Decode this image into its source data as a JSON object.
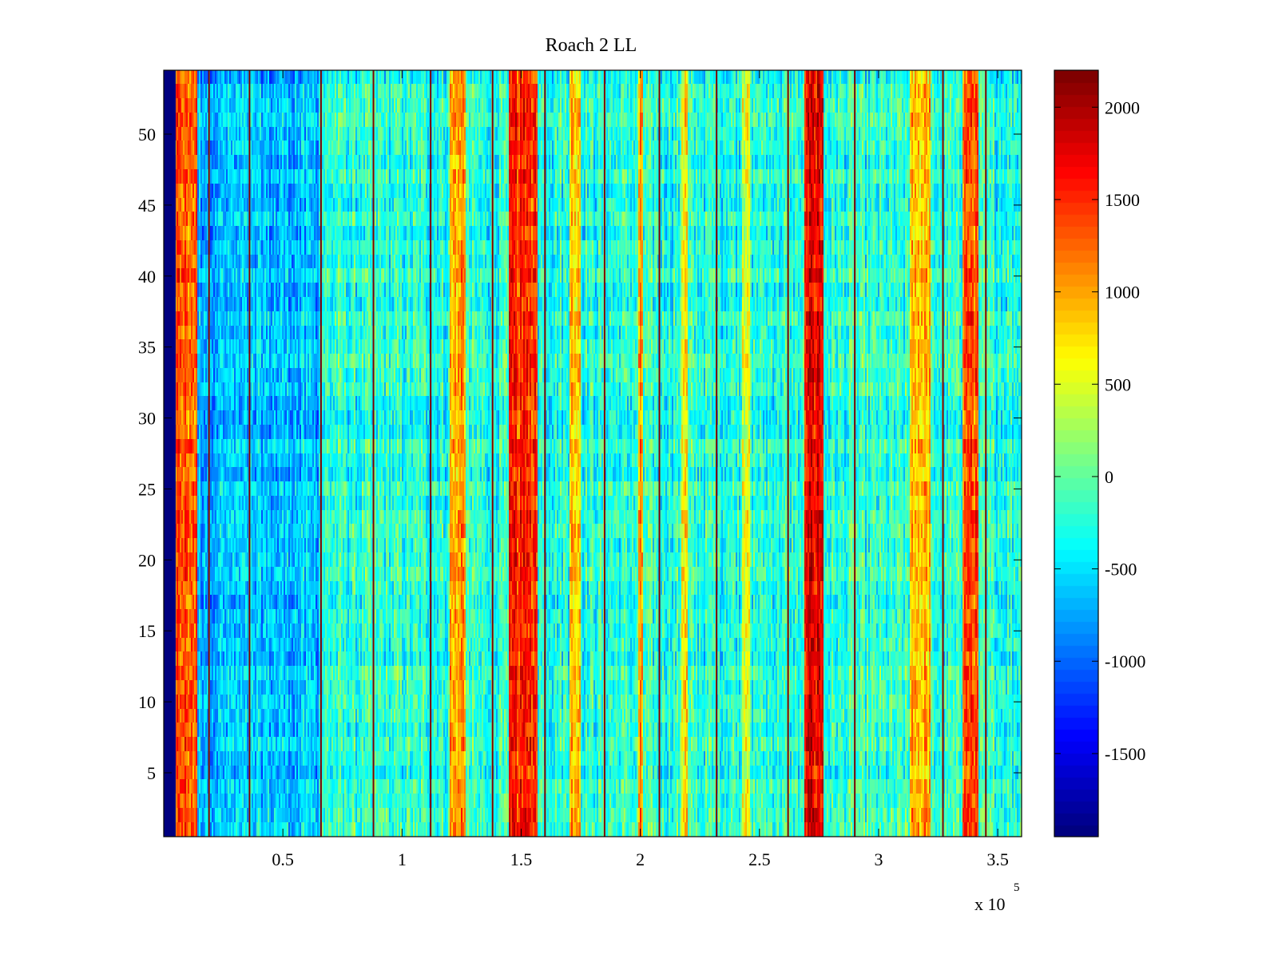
{
  "chart_data": {
    "type": "heatmap",
    "title": "Roach 2 LL",
    "xlabel": "",
    "ylabel": "",
    "x_exponent_label": "x 10",
    "x_exponent_power": "5",
    "xlim": [
      0,
      360000
    ],
    "ylim": [
      0.5,
      54.5
    ],
    "x_ticks": [
      50000,
      100000,
      150000,
      200000,
      250000,
      300000,
      350000
    ],
    "x_tick_labels": [
      "0.5",
      "1",
      "1.5",
      "2",
      "2.5",
      "3",
      "3.5"
    ],
    "y_ticks": [
      5,
      10,
      15,
      20,
      25,
      30,
      35,
      40,
      45,
      50
    ],
    "y_tick_labels": [
      "5",
      "10",
      "15",
      "20",
      "25",
      "30",
      "35",
      "40",
      "45",
      "50"
    ],
    "rows": 54,
    "colormap": "jet",
    "clim": [
      -1950,
      2200
    ],
    "colorbar": {
      "ticks": [
        -1500,
        -1000,
        -500,
        0,
        500,
        1000,
        1500,
        2000
      ],
      "tick_labels": [
        "-1500",
        "-1000",
        "-500",
        "0",
        "500",
        "1000",
        "1500",
        "2000"
      ]
    },
    "baseline_value": -250,
    "column_features": [
      {
        "x_start": 0,
        "x_end": 5000,
        "value": -1900,
        "note": "low"
      },
      {
        "x_start": 5000,
        "x_end": 14000,
        "value": 1300
      },
      {
        "x_start": 14000,
        "x_end": 65000,
        "value": -650
      },
      {
        "x_start": 120000,
        "x_end": 127000,
        "value": 1000
      },
      {
        "x_start": 145000,
        "x_end": 157000,
        "value": 1500
      },
      {
        "x_start": 170000,
        "x_end": 175000,
        "value": 900
      },
      {
        "x_start": 199000,
        "x_end": 201000,
        "value": 1000
      },
      {
        "x_start": 217000,
        "x_end": 220000,
        "value": 700
      },
      {
        "x_start": 243000,
        "x_end": 246000,
        "value": 600
      },
      {
        "x_start": 269000,
        "x_end": 277000,
        "value": 1700
      },
      {
        "x_start": 313000,
        "x_end": 322000,
        "value": 900
      },
      {
        "x_start": 335000,
        "x_end": 342000,
        "value": 1300
      }
    ],
    "vertical_lines_x": [
      19000,
      36000,
      66000,
      88000,
      112000,
      138000,
      160000,
      185000,
      208000,
      232000,
      262000,
      290000,
      327000,
      345000
    ],
    "vertical_line_value": 2200
  }
}
